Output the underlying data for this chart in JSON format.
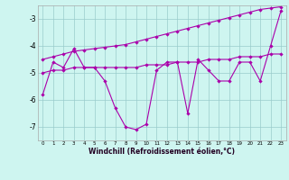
{
  "x": [
    0,
    1,
    2,
    3,
    4,
    5,
    6,
    7,
    8,
    9,
    10,
    11,
    12,
    13,
    14,
    15,
    16,
    17,
    18,
    19,
    20,
    21,
    22,
    23
  ],
  "line1": [
    -5.8,
    -4.6,
    -4.8,
    -4.1,
    -4.8,
    -4.8,
    -5.3,
    -6.3,
    -7.0,
    -7.1,
    -6.9,
    -4.9,
    -4.6,
    -4.6,
    -6.5,
    -4.5,
    -4.9,
    -5.3,
    -5.3,
    -4.6,
    -4.6,
    -5.3,
    -4.0,
    -2.7
  ],
  "line2": [
    -5.0,
    -4.9,
    -4.9,
    -4.8,
    -4.8,
    -4.8,
    -4.8,
    -4.8,
    -4.8,
    -4.8,
    -4.7,
    -4.7,
    -4.7,
    -4.6,
    -4.6,
    -4.6,
    -4.5,
    -4.5,
    -4.5,
    -4.4,
    -4.4,
    -4.4,
    -4.3,
    -4.3
  ],
  "line3": [
    -4.5,
    -4.4,
    -4.3,
    -4.2,
    -4.15,
    -4.1,
    -4.05,
    -4.0,
    -3.95,
    -3.85,
    -3.75,
    -3.65,
    -3.55,
    -3.45,
    -3.35,
    -3.25,
    -3.15,
    -3.05,
    -2.95,
    -2.85,
    -2.75,
    -2.65,
    -2.6,
    -2.55
  ],
  "bg_color": "#cef5f0",
  "plot_bg_color": "#cef5f0",
  "left_bg_color": "#b0c8c8",
  "line_color": "#aa00aa",
  "grid_color": "#99cccc",
  "xlabel": "Windchill (Refroidissement éolien,°C)",
  "ylim": [
    -7.5,
    -2.5
  ],
  "yticks": [
    -7,
    -6,
    -5,
    -4,
    -3
  ],
  "xlim": [
    -0.5,
    23.5
  ]
}
